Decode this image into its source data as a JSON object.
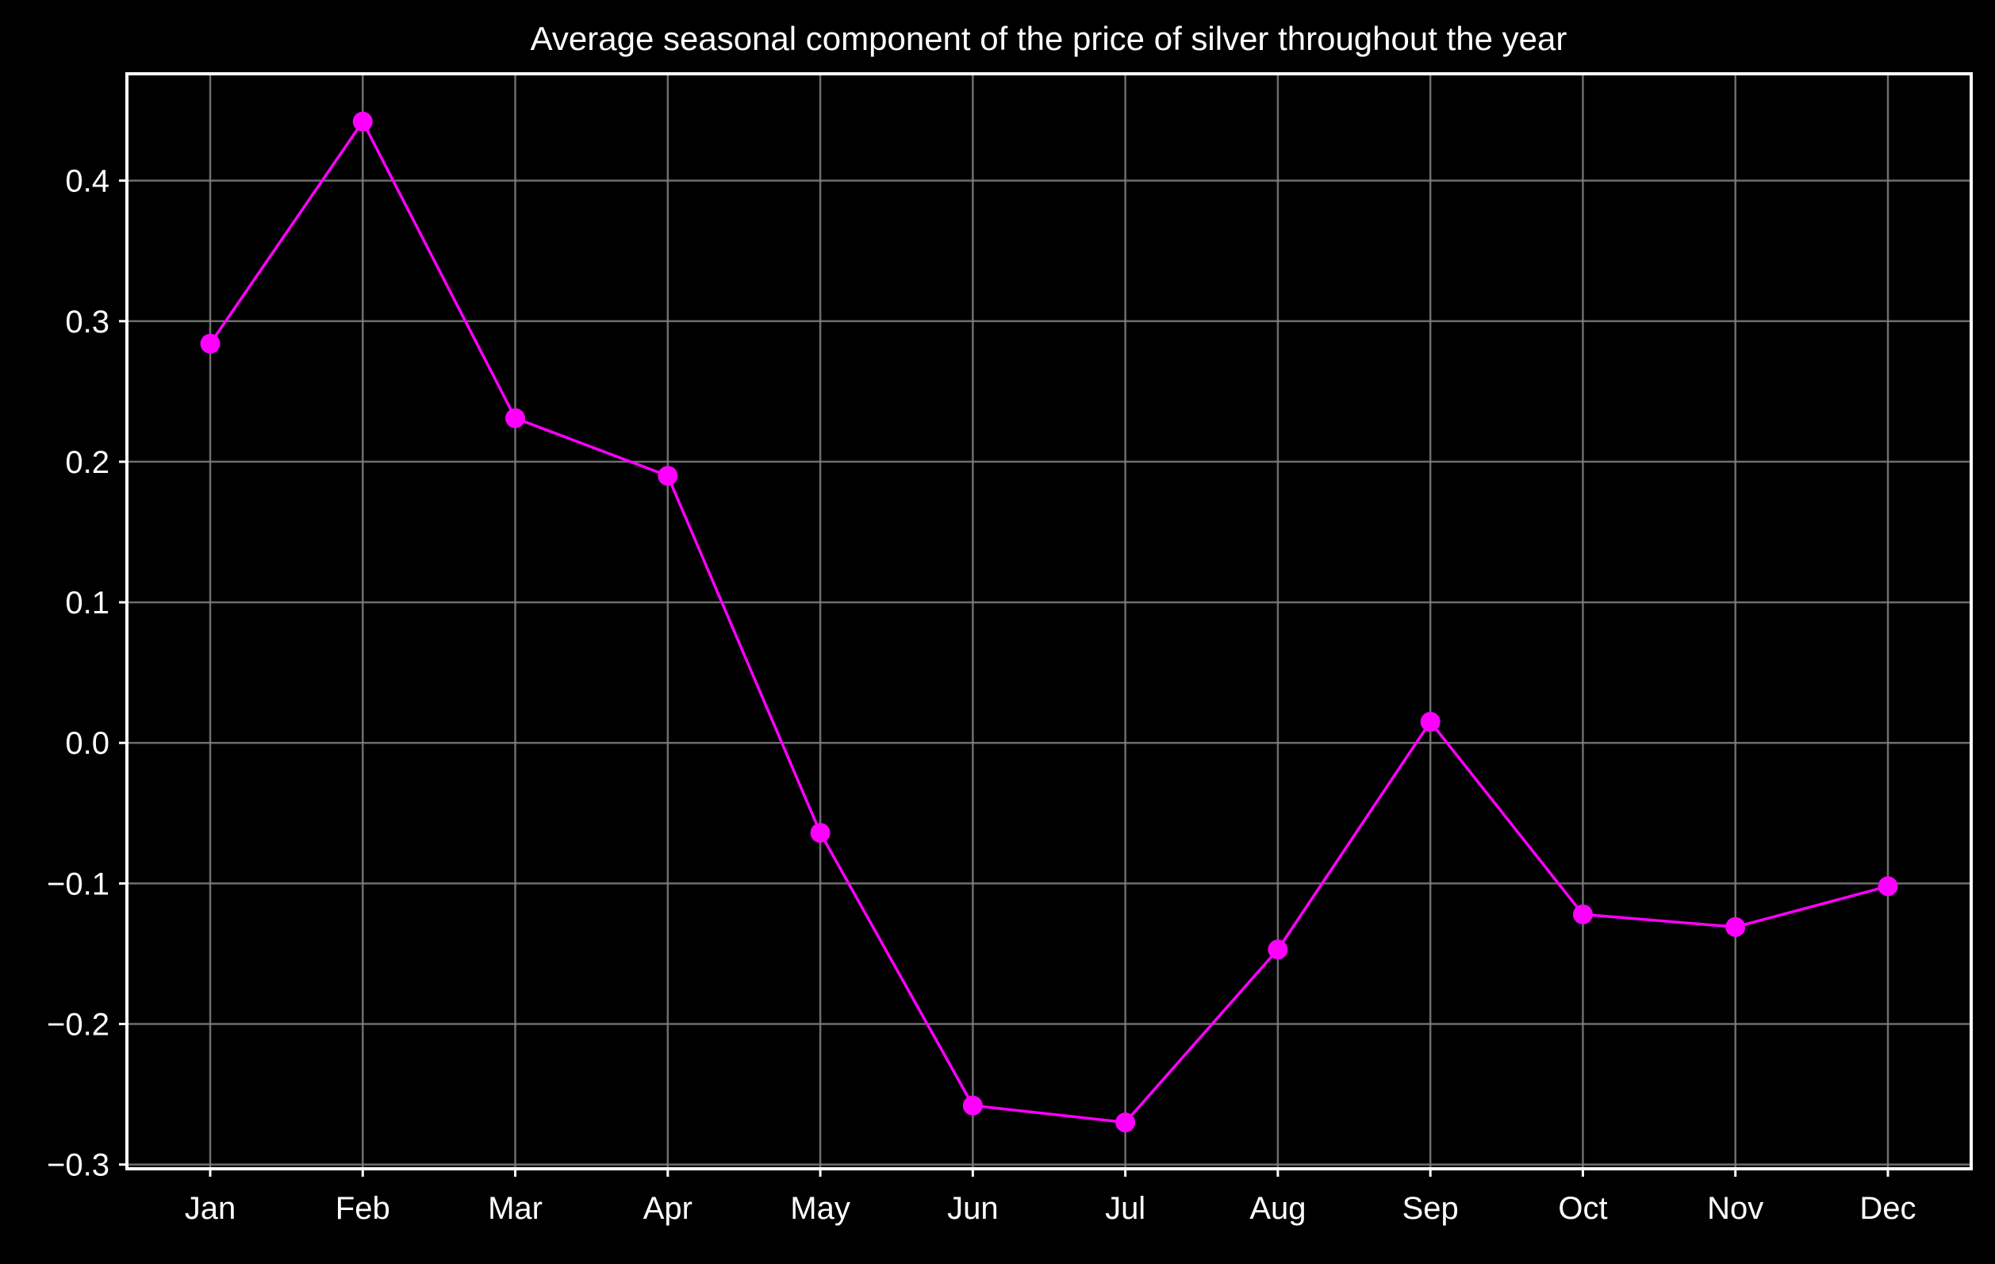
{
  "chart_data": {
    "type": "line",
    "title": "Average seasonal component of the price of silver throughout the year",
    "xlabel": "",
    "ylabel": "",
    "categories": [
      "Jan",
      "Feb",
      "Mar",
      "Apr",
      "May",
      "Jun",
      "Jul",
      "Aug",
      "Sep",
      "Oct",
      "Nov",
      "Dec"
    ],
    "series": [
      {
        "values": [
          0.284,
          0.442,
          0.231,
          0.19,
          -0.064,
          -0.258,
          -0.27,
          -0.147,
          0.015,
          -0.122,
          -0.131,
          -0.102
        ]
      }
    ],
    "ylim": [
      -0.303,
      0.476
    ],
    "yticks": [
      0.4,
      0.3,
      0.2,
      0.1,
      0.0,
      -0.1,
      -0.2,
      -0.3
    ],
    "ytick_labels": [
      "0.4",
      "0.3",
      "0.2",
      "0.1",
      "0.0",
      "−0.1",
      "−0.2",
      "−0.3"
    ],
    "grid": true,
    "legend": "none",
    "colors": {
      "background": "#000000",
      "line": "#ff00ff",
      "marker": "#ff00ff",
      "text": "#ffffff",
      "axes": "#ffffff",
      "grid": "#808080"
    }
  }
}
